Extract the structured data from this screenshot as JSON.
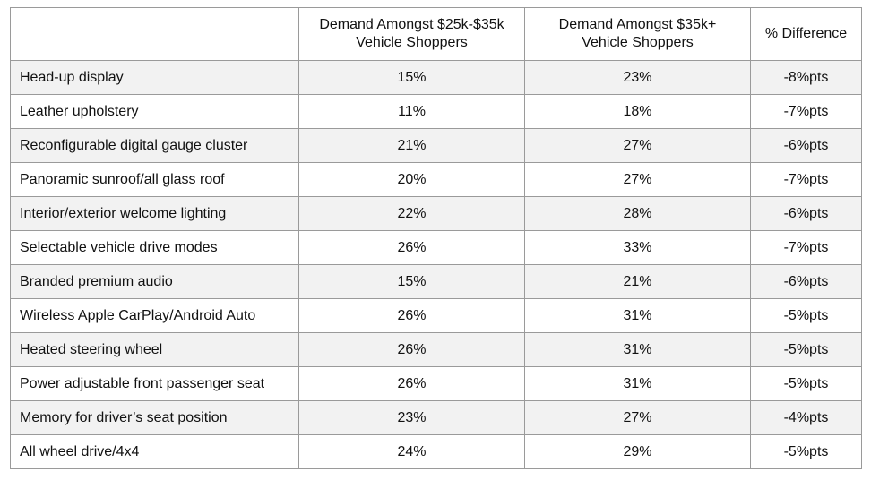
{
  "chart_data": {
    "type": "table",
    "columns": [
      "",
      "Demand Amongst $25k-$35k Vehicle Shoppers",
      "Demand Amongst $35k+ Vehicle Shoppers",
      "% Difference"
    ],
    "header_lines": [
      [],
      [
        "Demand Amongst $25k-$35k",
        "Vehicle Shoppers"
      ],
      [
        "Demand Amongst $35k+",
        "Vehicle Shoppers"
      ],
      [
        "% Difference"
      ]
    ],
    "rows": [
      [
        "Head-up display",
        "15%",
        "23%",
        "-8%pts"
      ],
      [
        "Leather upholstery",
        "11%",
        "18%",
        "-7%pts"
      ],
      [
        "Reconfigurable digital gauge cluster",
        "21%",
        "27%",
        "-6%pts"
      ],
      [
        "Panoramic sunroof/all glass roof",
        "20%",
        "27%",
        "-7%pts"
      ],
      [
        "Interior/exterior welcome lighting",
        "22%",
        "28%",
        "-6%pts"
      ],
      [
        "Selectable vehicle drive modes",
        "26%",
        "33%",
        "-7%pts"
      ],
      [
        "Branded premium audio",
        "15%",
        "21%",
        "-6%pts"
      ],
      [
        "Wireless Apple CarPlay/Android Auto",
        "26%",
        "31%",
        "-5%pts"
      ],
      [
        "Heated steering wheel",
        "26%",
        "31%",
        "-5%pts"
      ],
      [
        "Power adjustable front passenger seat",
        "26%",
        "31%",
        "-5%pts"
      ],
      [
        "Memory for driver’s seat position",
        "23%",
        "27%",
        "-4%pts"
      ],
      [
        "All wheel drive/4x4",
        "24%",
        "29%",
        "-5%pts"
      ]
    ]
  },
  "colors": {
    "stripe": "#f2f2f2",
    "background": "#ffffff",
    "border": "#9a9a9a",
    "text": "#111111"
  }
}
